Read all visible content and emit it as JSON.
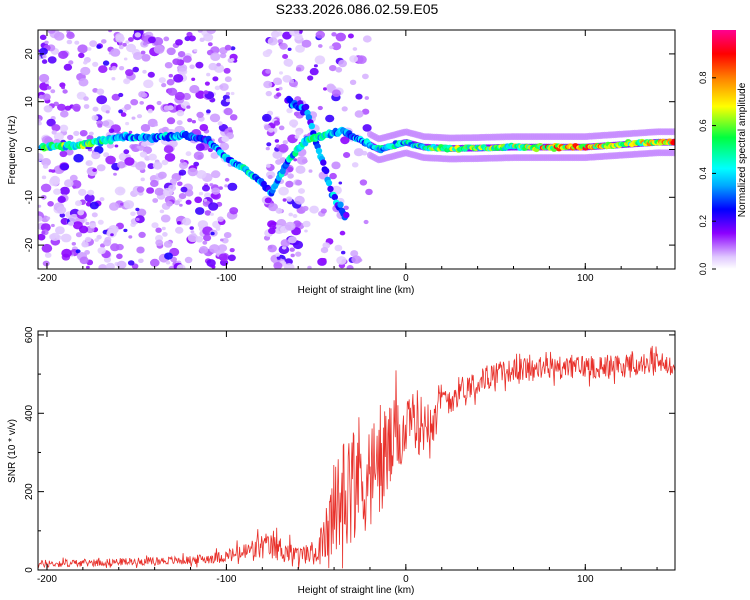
{
  "title": "S233.2026.086.02.59.E05",
  "colors": {
    "snr_line": "#e8302a",
    "axis": "#000000",
    "colormap": [
      "#ffffff",
      "#d9b3ff",
      "#8c00ff",
      "#0000ff",
      "#00e0ff",
      "#00ff40",
      "#ffff00",
      "#ff8000",
      "#ff0000",
      "#ff00a0"
    ]
  },
  "chart_data": [
    {
      "type": "heatmap",
      "name": "spectrogram",
      "xlabel": "Height of straight line (km)",
      "ylabel": "Frequency (Hz)",
      "xlim": [
        -205,
        150
      ],
      "ylim": [
        -25,
        25
      ],
      "xticks": [
        -200,
        -100,
        0,
        100
      ],
      "yticks": [
        -20,
        -10,
        0,
        10,
        20
      ],
      "colorbar": {
        "label": "Normalized spectral amplitude",
        "range": [
          0,
          1
        ],
        "ticks": [
          "0.0",
          "0.2",
          "0.4",
          "0.6",
          "0.8"
        ]
      },
      "ridge": [
        {
          "x": -200,
          "y": 0.5,
          "a": 0.55
        },
        {
          "x": -180,
          "y": 1.0,
          "a": 0.6
        },
        {
          "x": -160,
          "y": 2.5,
          "a": 0.4
        },
        {
          "x": -140,
          "y": 2.5,
          "a": 0.4
        },
        {
          "x": -125,
          "y": 3.0,
          "a": 0.4
        },
        {
          "x": -110,
          "y": 2.0,
          "a": 0.35
        },
        {
          "x": -100,
          "y": -2.0,
          "a": 0.4
        },
        {
          "x": -90,
          "y": -4.0,
          "a": 0.45
        },
        {
          "x": -80,
          "y": -7.0,
          "a": 0.4
        },
        {
          "x": -75,
          "y": -9.0,
          "a": 0.35
        },
        {
          "x": -65,
          "y": -2.0,
          "a": 0.45
        },
        {
          "x": -55,
          "y": 2.0,
          "a": 0.55
        },
        {
          "x": -45,
          "y": 3.0,
          "a": 0.5
        },
        {
          "x": -35,
          "y": 4.0,
          "a": 0.4
        },
        {
          "x": -25,
          "y": 2.0,
          "a": 0.4
        },
        {
          "x": -15,
          "y": 0.0,
          "a": 0.5
        },
        {
          "x": 0,
          "y": 1.5,
          "a": 0.45
        },
        {
          "x": 10,
          "y": 0.5,
          "a": 0.55
        },
        {
          "x": 25,
          "y": 0.2,
          "a": 0.7
        },
        {
          "x": 40,
          "y": 0.3,
          "a": 0.6
        },
        {
          "x": 60,
          "y": 0.5,
          "a": 0.65
        },
        {
          "x": 80,
          "y": 0.5,
          "a": 0.8
        },
        {
          "x": 100,
          "y": 0.5,
          "a": 0.85
        },
        {
          "x": 120,
          "y": 1.0,
          "a": 0.65
        },
        {
          "x": 140,
          "y": 1.5,
          "a": 0.8
        },
        {
          "x": 150,
          "y": 1.5,
          "a": 0.8
        }
      ],
      "secondary_ridge": [
        {
          "x": -65,
          "y": 10.0,
          "a": 0.3
        },
        {
          "x": -55,
          "y": 8.0,
          "a": 0.35
        },
        {
          "x": -50,
          "y": 2.0,
          "a": 0.3
        },
        {
          "x": -45,
          "y": -4.0,
          "a": 0.3
        },
        {
          "x": -40,
          "y": -10.0,
          "a": 0.35
        },
        {
          "x": -35,
          "y": -13.0,
          "a": 0.3
        }
      ]
    },
    {
      "type": "line",
      "name": "snr",
      "xlabel": "Height of straight line (km)",
      "ylabel": "SNR (10 * v/v)",
      "xlim": [
        -205,
        150
      ],
      "ylim": [
        0,
        610
      ],
      "xticks": [
        -200,
        -100,
        0,
        100
      ],
      "yticks": [
        0,
        200,
        400,
        600
      ],
      "series": [
        {
          "name": "SNR",
          "x": [
            -205,
            -180,
            -150,
            -120,
            -100,
            -90,
            -80,
            -70,
            -60,
            -50,
            -45,
            -40,
            -35,
            -30,
            -25,
            -20,
            -15,
            -10,
            -5,
            0,
            5,
            10,
            15,
            20,
            25,
            30,
            40,
            50,
            60,
            80,
            100,
            120,
            150
          ],
          "base": [
            15,
            18,
            22,
            25,
            35,
            45,
            60,
            55,
            35,
            45,
            80,
            150,
            200,
            230,
            250,
            240,
            260,
            300,
            340,
            350,
            380,
            370,
            410,
            430,
            440,
            460,
            480,
            500,
            510,
            515,
            520,
            520,
            530
          ],
          "amp": [
            12,
            12,
            12,
            14,
            20,
            30,
            45,
            40,
            30,
            40,
            80,
            160,
            180,
            200,
            200,
            180,
            170,
            160,
            120,
            90,
            110,
            90,
            80,
            60,
            50,
            45,
            40,
            38,
            36,
            38,
            40,
            40,
            35
          ]
        }
      ]
    }
  ]
}
